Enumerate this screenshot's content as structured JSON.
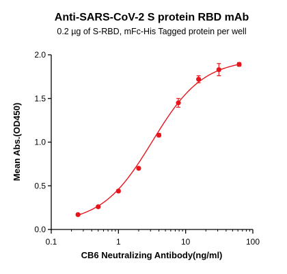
{
  "chart_data": {
    "type": "scatter",
    "title": "Anti-SARS-CoV-2 S protein RBD mAb",
    "subtitle": "0.2 µg of S-RBD, mFc-His Tagged protein per well",
    "xlabel": "CB6 Neutralizing Antibody(ng/ml)",
    "ylabel": "Mean Abs.(OD450)",
    "xscale": "log",
    "xlim": [
      0.1,
      100
    ],
    "ylim": [
      0,
      2.0
    ],
    "xticks": [
      "0.1",
      "1",
      "10",
      "100"
    ],
    "xtick_values": [
      0.1,
      1,
      10,
      100
    ],
    "yticks": [
      "0.0",
      "0.5",
      "1.0",
      "1.5",
      "2.0"
    ],
    "ytick_values": [
      0,
      0.5,
      1.0,
      1.5,
      2.0
    ],
    "series": [
      {
        "color": "#e8141b",
        "x": [
          0.25,
          0.5,
          1,
          2,
          4,
          7.8,
          15.6,
          31.25,
          62.5
        ],
        "y": [
          0.17,
          0.26,
          0.44,
          0.7,
          1.08,
          1.45,
          1.72,
          1.83,
          1.89
        ],
        "error": [
          0.01,
          0.01,
          0.015,
          0.015,
          0.02,
          0.05,
          0.04,
          0.07,
          0.02
        ],
        "fit": "four-parameter logistic"
      }
    ],
    "grid": false,
    "legend": "none"
  }
}
